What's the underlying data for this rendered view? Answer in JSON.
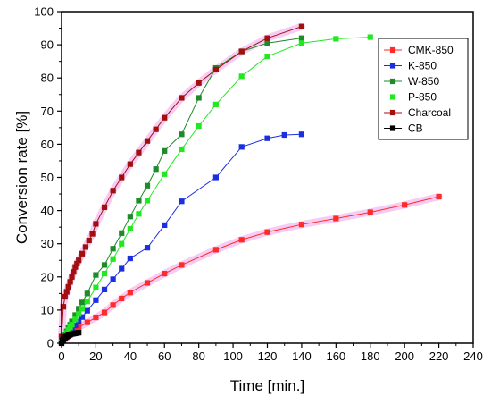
{
  "chart_data": {
    "type": "line",
    "xlabel": "Time [min.]",
    "ylabel": "Conversion rate [%]",
    "xlim": [
      0,
      240
    ],
    "ylim": [
      0,
      100
    ],
    "xticks": [
      0,
      20,
      40,
      60,
      80,
      100,
      120,
      140,
      160,
      180,
      200,
      220,
      240
    ],
    "yticks": [
      0,
      10,
      20,
      30,
      40,
      50,
      60,
      70,
      80,
      90,
      100
    ],
    "grid": false,
    "legend_position": "top-right",
    "series": [
      {
        "name": "CMK-850",
        "color": "#ff2a2a",
        "marker": "square",
        "glow": "#f4b6f0",
        "x": [
          0,
          1,
          2,
          3,
          4,
          5,
          6,
          8,
          10,
          15,
          20,
          25,
          30,
          35,
          40,
          50,
          60,
          70,
          90,
          105,
          120,
          140,
          160,
          180,
          200,
          220
        ],
        "y": [
          0.3,
          0.8,
          1.3,
          1.8,
          2.3,
          2.8,
          3.2,
          4.0,
          4.8,
          6.3,
          7.8,
          9.3,
          11.5,
          13.5,
          15.3,
          18.2,
          21.0,
          23.6,
          28.2,
          31.2,
          33.5,
          35.8,
          37.6,
          39.5,
          41.7,
          44.2
        ]
      },
      {
        "name": "K-850",
        "color": "#1c2fe0",
        "marker": "square",
        "x": [
          0,
          1,
          2,
          3,
          4,
          5,
          6,
          8,
          10,
          12,
          15,
          20,
          25,
          30,
          35,
          40,
          50,
          60,
          70,
          90,
          105,
          120,
          130,
          140
        ],
        "y": [
          0.3,
          0.9,
          1.6,
          2.2,
          2.9,
          3.5,
          4.2,
          5.4,
          6.6,
          7.9,
          9.8,
          13.0,
          16.2,
          19.3,
          22.5,
          25.6,
          28.8,
          35.6,
          42.8,
          50.0,
          59.2,
          61.8,
          62.8,
          63.0
        ]
      },
      {
        "name": "W-850",
        "color": "#1e8a2a",
        "marker": "square",
        "x": [
          0,
          1,
          2,
          3,
          4,
          5,
          6,
          8,
          10,
          12,
          15,
          20,
          25,
          30,
          35,
          40,
          45,
          50,
          55,
          60,
          70,
          80,
          90,
          105,
          120,
          140
        ],
        "y": [
          0.5,
          1.5,
          2.6,
          3.6,
          4.6,
          5.6,
          6.6,
          8.5,
          10.4,
          12.3,
          15.0,
          20.6,
          23.6,
          28.5,
          33.2,
          38.2,
          43.0,
          47.5,
          52.5,
          58.0,
          63.0,
          74.0,
          83.0,
          88.0,
          90.5,
          92.0
        ]
      },
      {
        "name": "P-850",
        "color": "#22e822",
        "marker": "square",
        "x": [
          0,
          1,
          2,
          3,
          4,
          5,
          6,
          8,
          10,
          12,
          15,
          20,
          25,
          30,
          35,
          40,
          45,
          50,
          60,
          70,
          80,
          90,
          105,
          120,
          140,
          160,
          180
        ],
        "y": [
          0.4,
          1.3,
          2.2,
          3.1,
          4.0,
          4.8,
          5.6,
          7.2,
          8.8,
          10.4,
          12.6,
          16.8,
          21.0,
          25.4,
          30.0,
          34.5,
          39.0,
          43.0,
          51.0,
          58.5,
          65.5,
          72.0,
          80.5,
          86.5,
          90.5,
          91.8,
          92.3
        ]
      },
      {
        "name": "Charcoal",
        "color": "#a30f0f",
        "marker": "square",
        "glow": "#f4b6f0",
        "x": [
          0,
          1,
          2,
          3,
          4,
          5,
          6,
          7,
          8,
          9,
          10,
          12,
          14,
          16,
          18,
          20,
          25,
          30,
          35,
          40,
          45,
          50,
          55,
          60,
          70,
          80,
          90,
          105,
          120,
          140
        ],
        "y": [
          2.0,
          11.0,
          14.0,
          15.5,
          17.0,
          18.5,
          20.0,
          21.5,
          23.0,
          24.0,
          25.0,
          27.0,
          29.0,
          31.0,
          33.0,
          36.0,
          41.0,
          46.0,
          50.0,
          54.0,
          57.5,
          61.0,
          64.5,
          68.0,
          74.0,
          78.5,
          82.5,
          88.0,
          92.0,
          95.5
        ]
      },
      {
        "name": "CB",
        "color": "#000000",
        "marker": "square",
        "x": [
          0,
          0.5,
          1,
          1.5,
          2,
          2.5,
          3,
          3.5,
          4,
          4.5,
          5,
          6,
          7,
          8,
          9,
          10
        ],
        "y": [
          0.0,
          0.8,
          1.2,
          1.5,
          1.7,
          1.9,
          2.1,
          2.2,
          2.4,
          2.5,
          2.6,
          2.8,
          2.9,
          3.0,
          3.1,
          3.2
        ]
      }
    ]
  }
}
